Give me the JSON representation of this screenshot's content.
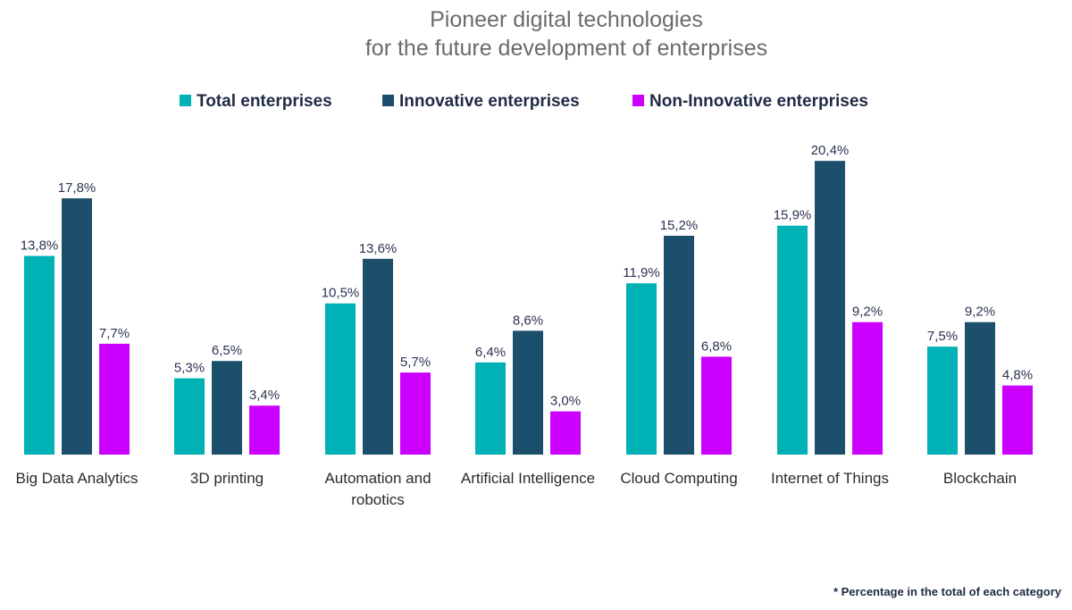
{
  "chart_data": {
    "type": "bar",
    "title_lines": [
      "Pioneer digital technologies",
      "for the future development of enterprises"
    ],
    "categories": [
      [
        "Big Data Analytics"
      ],
      [
        "3D printing"
      ],
      [
        "Automation and",
        "robotics"
      ],
      [
        "Artificial Intelligence"
      ],
      [
        "Cloud Computing"
      ],
      [
        "Internet of Things"
      ],
      [
        "Blockchain"
      ]
    ],
    "series": [
      {
        "name": "Total enterprises",
        "color": "#00b2b5",
        "values": [
          13.8,
          5.3,
          10.5,
          6.4,
          11.9,
          15.9,
          7.5
        ],
        "labels": [
          "13,8%",
          "5,3%",
          "10,5%",
          "6,4%",
          "11,9%",
          "15,9%",
          "7,5%"
        ]
      },
      {
        "name": "Innovative enterprises",
        "color": "#1b4f6b",
        "values": [
          17.8,
          6.5,
          13.6,
          8.6,
          15.2,
          20.4,
          9.2
        ],
        "labels": [
          "17,8%",
          "6,5%",
          "13,6%",
          "8,6%",
          "15,2%",
          "20,4%",
          "9,2%"
        ]
      },
      {
        "name": "Non-Innovative enterprises",
        "color": "#cc00ff",
        "values": [
          7.7,
          3.4,
          5.7,
          3.0,
          6.8,
          9.2,
          4.8
        ],
        "labels": [
          "7,7%",
          "3,4%",
          "5,7%",
          "3,0%",
          "6,8%",
          "9,2%",
          "4,8%"
        ]
      }
    ],
    "ylim": [
      0,
      21
    ],
    "grid": false,
    "legend_position": "top-center",
    "footnote": "* Percentage in the total of each category"
  }
}
